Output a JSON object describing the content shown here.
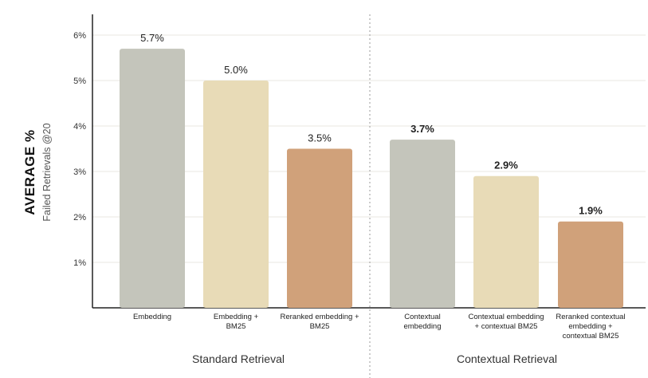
{
  "chart_data": {
    "type": "bar",
    "ylabel": "AVERAGE %",
    "ylabel_sub": "Failed Retrievals @20",
    "ylim": [
      0,
      6
    ],
    "yticks": [
      "1%",
      "2%",
      "3%",
      "4%",
      "5%",
      "6%"
    ],
    "grid": true,
    "groups": [
      {
        "name": "Standard Retrieval",
        "bars": [
          {
            "label": "Embedding",
            "value": 5.7,
            "value_label": "5.7%",
            "color": "#c4c5bb"
          },
          {
            "label": "Embedding +\nBM25",
            "value": 5.0,
            "value_label": "5.0%",
            "color": "#e8dbb7"
          },
          {
            "label": "Reranked embedding +\nBM25",
            "value": 3.5,
            "value_label": "3.5%",
            "color": "#d0a17a"
          }
        ]
      },
      {
        "name": "Contextual Retrieval",
        "bars": [
          {
            "label": "Contextual\nembedding",
            "value": 3.7,
            "value_label": "3.7%",
            "color": "#c4c5bb"
          },
          {
            "label": "Contextual embedding\n+ contextual BM25",
            "value": 2.9,
            "value_label": "2.9%",
            "color": "#e8dbb7"
          },
          {
            "label": "Reranked contextual\nembedding +\ncontextual BM25",
            "value": 1.9,
            "value_label": "1.9%",
            "color": "#d0a17a"
          }
        ]
      }
    ]
  }
}
